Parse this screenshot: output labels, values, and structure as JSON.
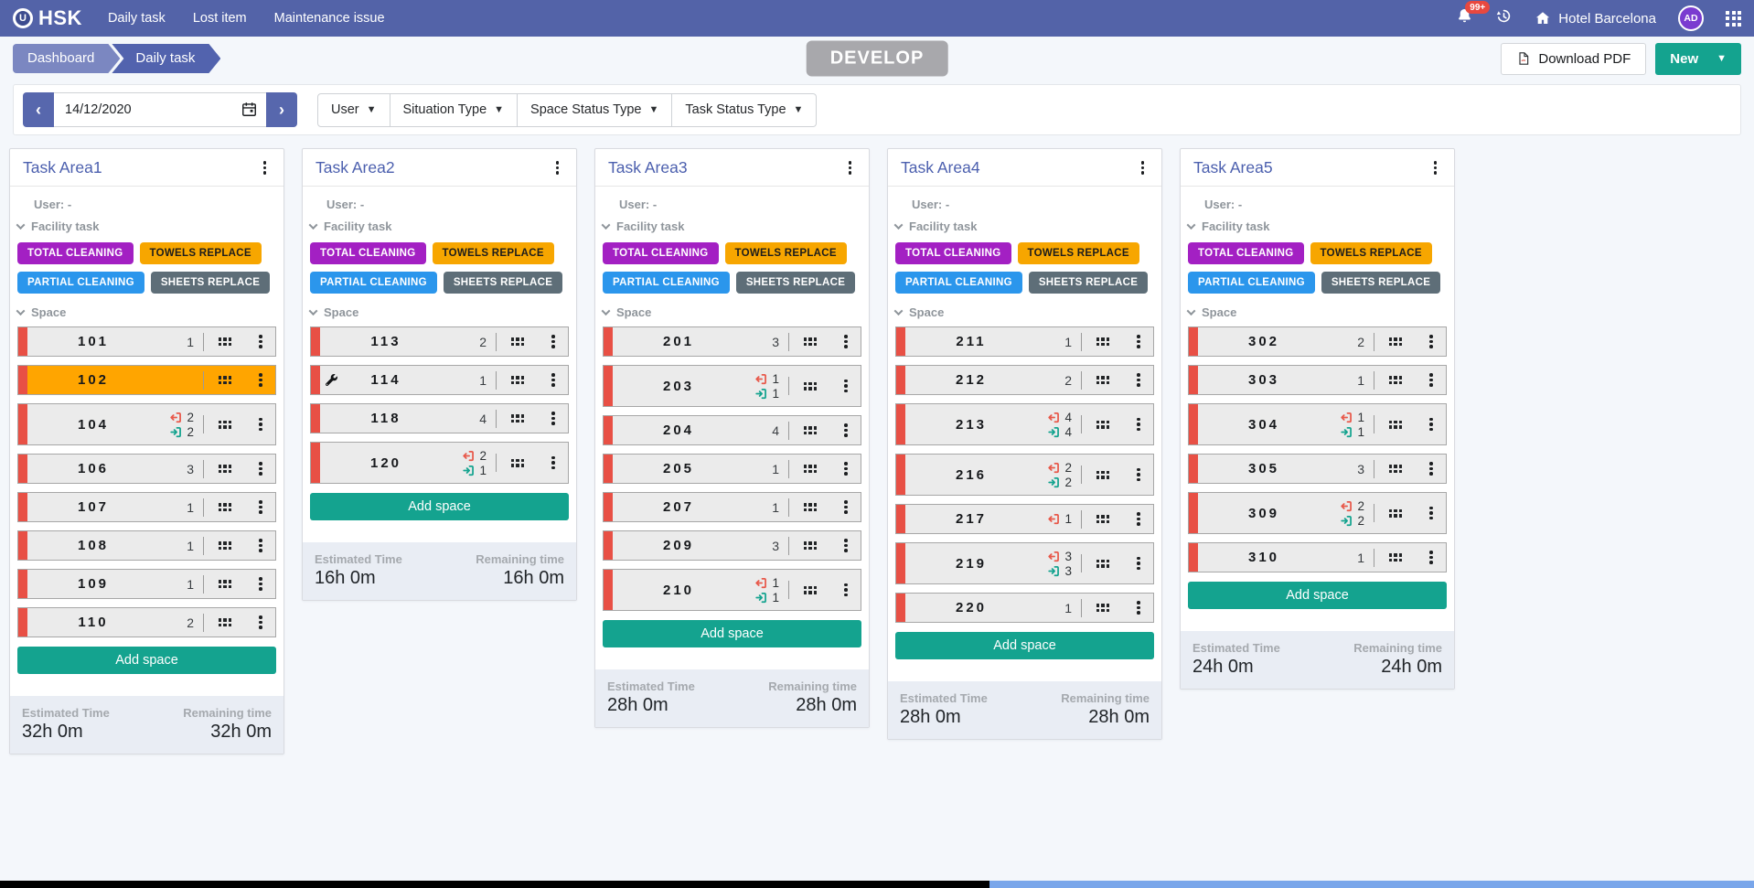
{
  "navbar": {
    "brand": "HSK",
    "links": [
      "Daily task",
      "Lost item",
      "Maintenance issue"
    ],
    "notification_badge": "99+",
    "hotel_name": "Hotel Barcelona",
    "avatar_initials": "AD"
  },
  "breadcrumb": {
    "items": [
      "Dashboard",
      "Daily task"
    ]
  },
  "env_badge": "DEVELOP",
  "actions": {
    "download_pdf": "Download PDF",
    "new_label": "New"
  },
  "filters": {
    "date": "14/12/2020",
    "dropdowns": [
      "User",
      "Situation Type",
      "Space Status Type",
      "Task Status Type"
    ]
  },
  "labels": {
    "user": "User: -",
    "facility_task": "Facility task",
    "space": "Space",
    "add_space": "Add space",
    "estimated": "Estimated Time",
    "remaining": "Remaining time"
  },
  "facility_badges": [
    {
      "label": "TOTAL CLEANING",
      "bg": "#a320c3",
      "fg": "#ffffff"
    },
    {
      "label": "TOWELS REPLACE",
      "bg": "#f7a600",
      "fg": "#1c1c1c"
    },
    {
      "label": "PARTIAL CLEANING",
      "bg": "#2b96ec",
      "fg": "#ffffff"
    },
    {
      "label": "SHEETS REPLACE",
      "bg": "#5e6e78",
      "fg": "#ffffff"
    }
  ],
  "colors": {
    "navbar": "#5363a8",
    "accent_teal": "#14a38f",
    "row_status_red": "#e85045",
    "row_highlight_orange": "#ffa500",
    "checkout_red": "#e8584a",
    "checkin_teal": "#14a38f"
  },
  "areas": [
    {
      "title": "Task Area1",
      "estimated": "32h 0m",
      "remaining": "32h 0m",
      "rooms": [
        {
          "number": "101",
          "count": "1"
        },
        {
          "number": "102",
          "highlight": true
        },
        {
          "number": "104",
          "out": "2",
          "in": "2"
        },
        {
          "number": "106",
          "count": "3"
        },
        {
          "number": "107",
          "count": "1"
        },
        {
          "number": "108",
          "count": "1"
        },
        {
          "number": "109",
          "count": "1"
        },
        {
          "number": "110",
          "count": "2"
        }
      ]
    },
    {
      "title": "Task Area2",
      "estimated": "16h 0m",
      "remaining": "16h 0m",
      "rooms": [
        {
          "number": "113",
          "count": "2"
        },
        {
          "number": "114",
          "count": "1",
          "maintenance": true
        },
        {
          "number": "118",
          "count": "4"
        },
        {
          "number": "120",
          "out": "2",
          "in": "1"
        }
      ]
    },
    {
      "title": "Task Area3",
      "estimated": "28h 0m",
      "remaining": "28h 0m",
      "rooms": [
        {
          "number": "201",
          "count": "3"
        },
        {
          "number": "203",
          "out": "1",
          "in": "1"
        },
        {
          "number": "204",
          "count": "4"
        },
        {
          "number": "205",
          "count": "1"
        },
        {
          "number": "207",
          "count": "1"
        },
        {
          "number": "209",
          "count": "3"
        },
        {
          "number": "210",
          "out": "1",
          "in": "1"
        }
      ]
    },
    {
      "title": "Task Area4",
      "estimated": "28h 0m",
      "remaining": "28h 0m",
      "rooms": [
        {
          "number": "211",
          "count": "1"
        },
        {
          "number": "212",
          "count": "2"
        },
        {
          "number": "213",
          "out": "4",
          "in": "4"
        },
        {
          "number": "216",
          "out": "2",
          "in": "2"
        },
        {
          "number": "217",
          "out": "1"
        },
        {
          "number": "219",
          "out": "3",
          "in": "3"
        },
        {
          "number": "220",
          "count": "1"
        }
      ]
    },
    {
      "title": "Task Area5",
      "estimated": "24h 0m",
      "remaining": "24h 0m",
      "rooms": [
        {
          "number": "302",
          "count": "2"
        },
        {
          "number": "303",
          "count": "1"
        },
        {
          "number": "304",
          "out": "1",
          "in": "1"
        },
        {
          "number": "305",
          "count": "3"
        },
        {
          "number": "309",
          "out": "2",
          "in": "2"
        },
        {
          "number": "310",
          "count": "1"
        }
      ]
    }
  ]
}
